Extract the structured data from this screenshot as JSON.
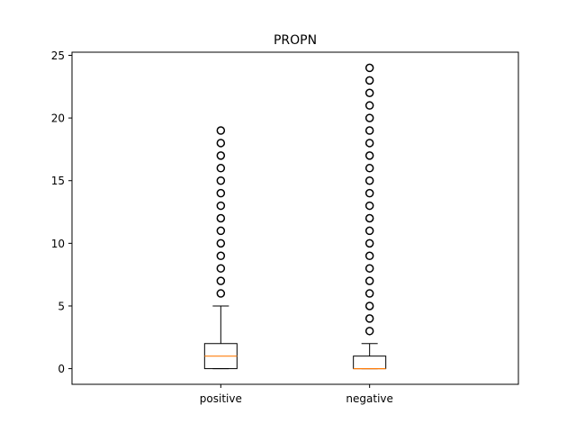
{
  "chart_data": {
    "type": "boxplot",
    "title": "PROPN",
    "xlabel": "",
    "ylabel": "",
    "ylim": [
      -1.25,
      25.25
    ],
    "yticks": [
      0,
      5,
      10,
      15,
      20,
      25
    ],
    "grid": false,
    "categories": [
      "positive",
      "negative"
    ],
    "series": [
      {
        "category": "positive",
        "whisker_low": 0,
        "q1": 0,
        "median": 1,
        "q3": 2,
        "whisker_high": 5,
        "outliers": [
          6,
          7,
          8,
          9,
          10,
          11,
          12,
          13,
          14,
          15,
          16,
          17,
          18,
          19
        ]
      },
      {
        "category": "negative",
        "whisker_low": 0,
        "q1": 0,
        "median": 0,
        "q3": 1,
        "whisker_high": 2,
        "outliers": [
          3,
          4,
          5,
          6,
          7,
          8,
          9,
          10,
          11,
          12,
          13,
          14,
          15,
          16,
          17,
          18,
          19,
          20,
          21,
          22,
          23,
          24
        ]
      }
    ],
    "colors": {
      "box": "#000000",
      "median": "#ff7f0e",
      "outlier": "#000000"
    }
  }
}
